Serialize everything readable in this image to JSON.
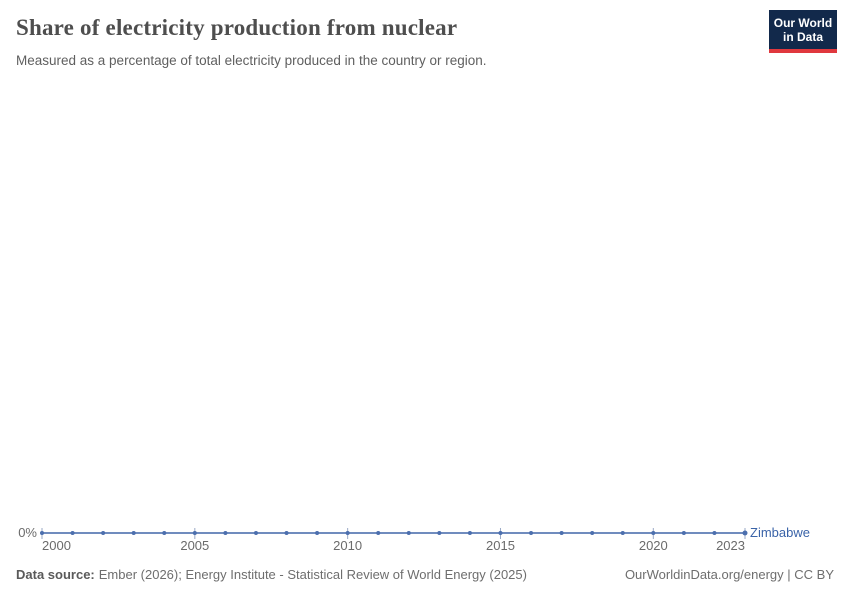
{
  "header": {
    "title": "Share of electricity production from nuclear",
    "subtitle": "Measured as a percentage of total electricity produced in the country or region."
  },
  "logo": {
    "line1": "Our World",
    "line2": "in Data"
  },
  "chart_data": {
    "type": "line",
    "title": "Share of electricity production from nuclear",
    "subtitle": "Measured as a percentage of total electricity produced in the country or region.",
    "x": [
      2000,
      2001,
      2002,
      2003,
      2004,
      2005,
      2006,
      2007,
      2008,
      2009,
      2010,
      2011,
      2012,
      2013,
      2014,
      2015,
      2016,
      2017,
      2018,
      2019,
      2020,
      2021,
      2022,
      2023
    ],
    "series": [
      {
        "name": "Zimbabwe",
        "values": [
          0,
          0,
          0,
          0,
          0,
          0,
          0,
          0,
          0,
          0,
          0,
          0,
          0,
          0,
          0,
          0,
          0,
          0,
          0,
          0,
          0,
          0,
          0,
          0
        ]
      }
    ],
    "x_ticks": [
      2000,
      2005,
      2010,
      2015,
      2020,
      2023
    ],
    "y_axis_label": "0%",
    "y_ticks_visible": [
      "0%"
    ],
    "ylim": [
      0,
      0
    ],
    "xlabel": "",
    "ylabel": "",
    "grid": false,
    "legend_position": "end-of-line",
    "marker": "dot-per-year"
  },
  "colors": {
    "line": "#5b7bb5",
    "point": "#4c6fae",
    "tick": "#9aa9c6",
    "series_label": "#3a63a8",
    "axis_text": "#6b6b6b",
    "title_text": "#4e4e4e",
    "subtitle_text": "#5f5f5f",
    "footer_text": "#6e6e6e",
    "footer_label": "#5a5a5a",
    "logo_bg": "#12294b",
    "logo_accent": "#e0383e"
  },
  "footer": {
    "data_source_label": "Data source:",
    "data_source_text": "Ember (2026); Energy Institute - Statistical Review of World Energy (2025)",
    "credit": "OurWorldinData.org/energy | CC BY"
  }
}
